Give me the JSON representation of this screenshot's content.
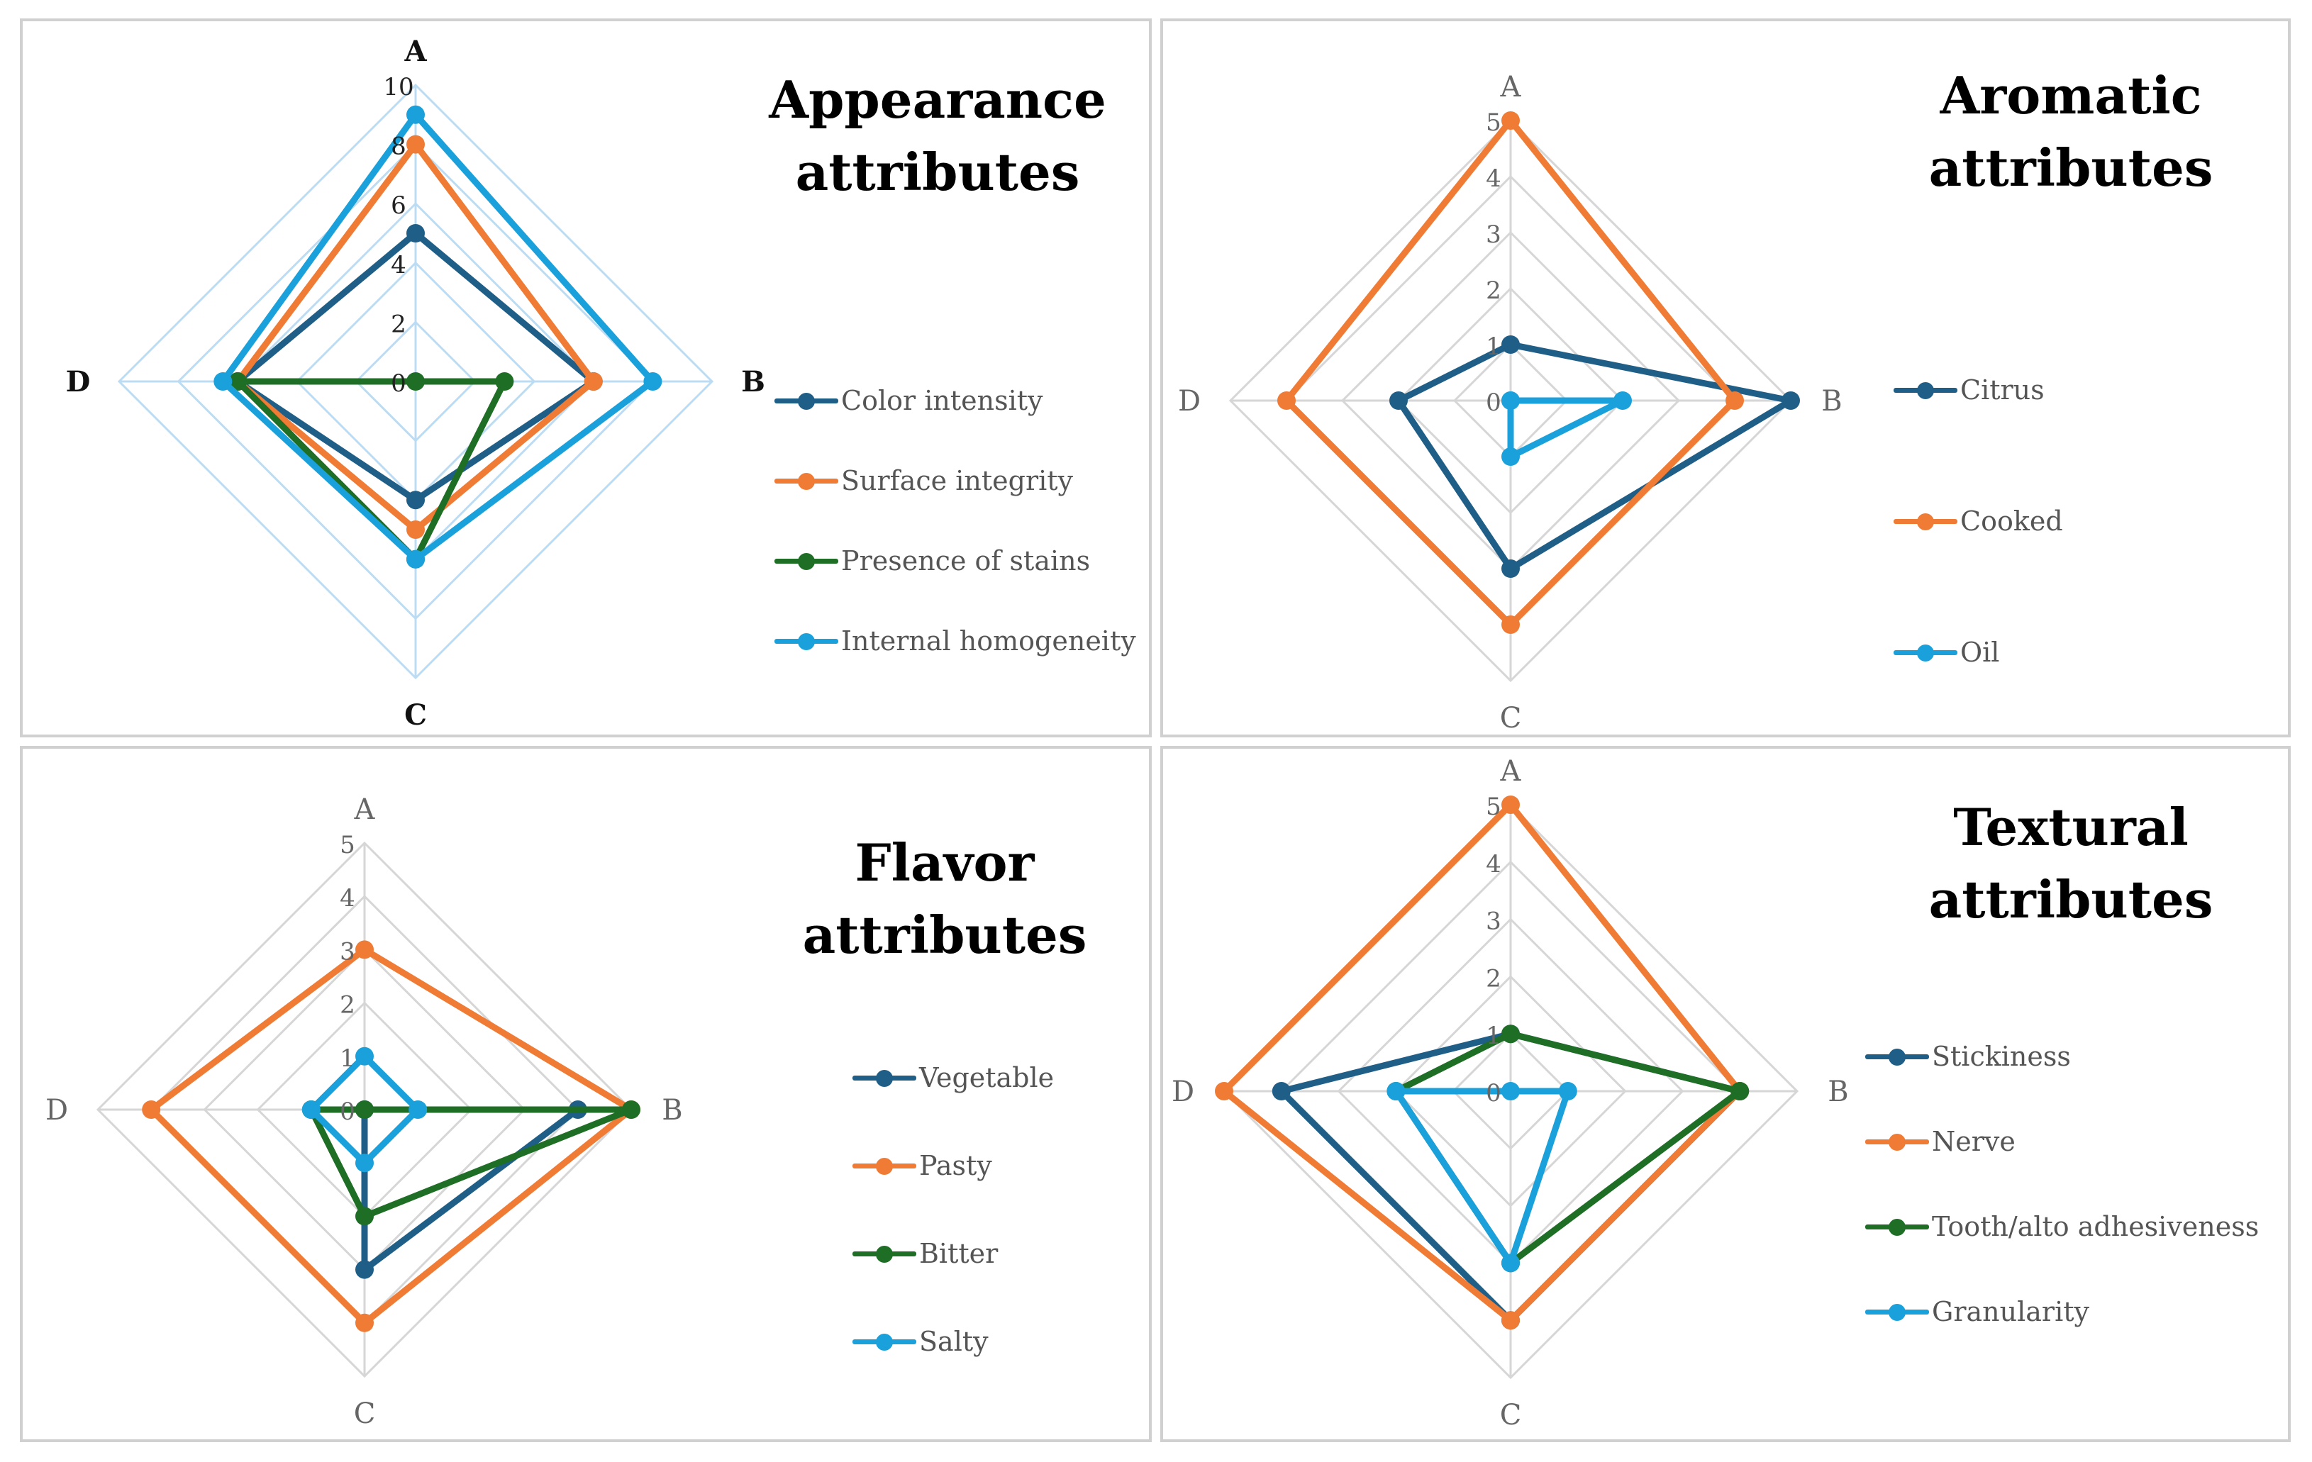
{
  "chart_data": [
    {
      "type": "radar",
      "title_lines": [
        "Appearance",
        "attributes"
      ],
      "axes": [
        "A",
        "B",
        "C",
        "D"
      ],
      "scale": {
        "max": 10,
        "step": 2,
        "ticks": [
          "0",
          "2",
          "4",
          "6",
          "8",
          "10"
        ]
      },
      "gridline_color": "#bcdcf4",
      "series": [
        {
          "name": "Color intensity",
          "color": "#1f5e86",
          "values": [
            5,
            6,
            4,
            6
          ]
        },
        {
          "name": "Surface integrity",
          "color": "#ef7b34",
          "values": [
            8,
            6,
            5,
            6
          ]
        },
        {
          "name": "Presence of stains",
          "color": "#1e6e25",
          "values": [
            0,
            3,
            6,
            6
          ]
        },
        {
          "name": "Internal homogeneity",
          "color": "#1aa1db",
          "values": [
            9,
            8,
            6,
            6.5
          ]
        }
      ]
    },
    {
      "type": "radar",
      "title_lines": [
        "Aromatic",
        "attributes"
      ],
      "axes": [
        "A",
        "B",
        "C",
        "D"
      ],
      "scale": {
        "max": 5,
        "step": 1,
        "ticks": [
          "0",
          "1",
          "2",
          "3",
          "4",
          "5"
        ]
      },
      "gridline_color": "#d6d6d6",
      "series": [
        {
          "name": "Citrus",
          "color": "#1f5e86",
          "values": [
            1,
            5,
            3,
            2
          ]
        },
        {
          "name": "Cooked",
          "color": "#ef7b34",
          "values": [
            5,
            4,
            4,
            4
          ]
        },
        {
          "name": "Oil",
          "color": "#1aa1db",
          "values": [
            0,
            2,
            1,
            0
          ]
        }
      ]
    },
    {
      "type": "radar",
      "title_lines": [
        "Flavor",
        "attributes"
      ],
      "axes": [
        "A",
        "B",
        "C",
        "D"
      ],
      "scale": {
        "max": 5,
        "step": 1,
        "ticks": [
          "0",
          "1",
          "2",
          "3",
          "4",
          "5"
        ]
      },
      "gridline_color": "#d6d6d6",
      "series": [
        {
          "name": "Vegetable",
          "color": "#1f5e86",
          "values": [
            0,
            4,
            3,
            0
          ]
        },
        {
          "name": "Pasty",
          "color": "#ef7b34",
          "values": [
            3,
            5,
            4,
            4
          ]
        },
        {
          "name": "Bitter",
          "color": "#1e6e25",
          "values": [
            0,
            5,
            2,
            1
          ]
        },
        {
          "name": "Salty",
          "color": "#1aa1db",
          "values": [
            1,
            1,
            1,
            1
          ]
        }
      ]
    },
    {
      "type": "radar",
      "title_lines": [
        "Textural",
        "attributes"
      ],
      "axes": [
        "A",
        "B",
        "C",
        "D"
      ],
      "scale": {
        "max": 5,
        "step": 1,
        "ticks": [
          "0",
          "1",
          "2",
          "3",
          "4",
          "5"
        ]
      },
      "gridline_color": "#d6d6d6",
      "series": [
        {
          "name": "Stickiness",
          "color": "#1f5e86",
          "values": [
            1,
            4,
            4,
            4
          ]
        },
        {
          "name": "Nerve",
          "color": "#ef7b34",
          "values": [
            5,
            4,
            4,
            5
          ]
        },
        {
          "name": "Tooth/alto adhesiveness",
          "color": "#1e6e25",
          "values": [
            1,
            4,
            3,
            2
          ]
        },
        {
          "name": "Granularity",
          "color": "#1aa1db",
          "values": [
            0,
            1,
            3,
            2
          ]
        }
      ]
    }
  ]
}
